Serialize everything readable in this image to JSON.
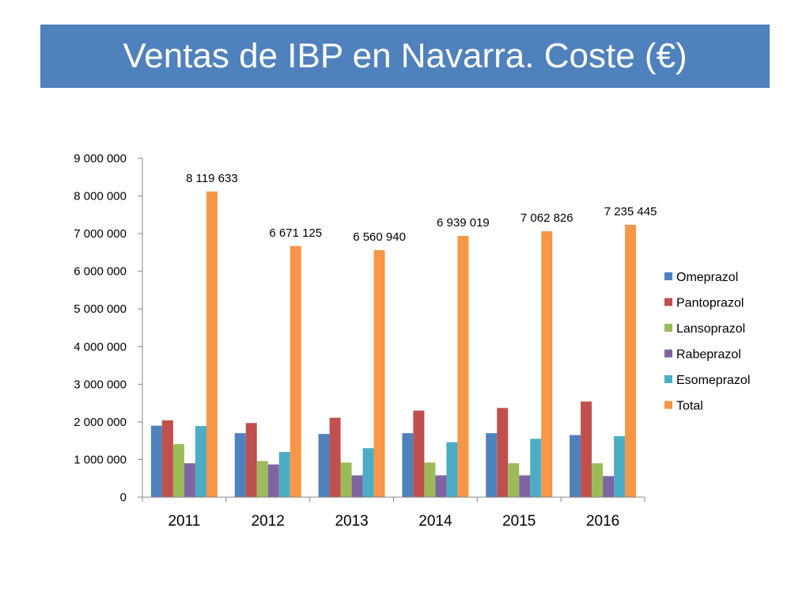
{
  "slide": {
    "title": "Ventas de IBP en Navarra. Coste (€)"
  },
  "chart_data": {
    "type": "bar",
    "categories": [
      "2011",
      "2012",
      "2013",
      "2014",
      "2015",
      "2016"
    ],
    "series": [
      {
        "name": "Omeprazol",
        "color": "#4f81bd",
        "values": [
          1900000,
          1700000,
          1680000,
          1700000,
          1700000,
          1650000
        ]
      },
      {
        "name": "Pantoprazol",
        "color": "#c0504d",
        "values": [
          2040000,
          1970000,
          2110000,
          2300000,
          2370000,
          2540000
        ]
      },
      {
        "name": "Lansoprazol",
        "color": "#9bbb59",
        "values": [
          1410000,
          960000,
          920000,
          920000,
          900000,
          900000
        ]
      },
      {
        "name": "Rabeprazol",
        "color": "#8064a2",
        "values": [
          900000,
          870000,
          580000,
          580000,
          580000,
          560000
        ]
      },
      {
        "name": "Esomeprazol",
        "color": "#4bacc6",
        "values": [
          1890000,
          1200000,
          1300000,
          1460000,
          1550000,
          1620000
        ]
      },
      {
        "name": "Total",
        "color": "#f79646",
        "values": [
          8119633,
          6671125,
          6560940,
          6939019,
          7062826,
          7235445
        ]
      }
    ],
    "data_labels": {
      "series": "Total",
      "labels": [
        "8 119 633",
        "6 671 125",
        "6 560 940",
        "6 939 019",
        "7 062 826",
        "7 235 445"
      ]
    },
    "y_ticks": [
      0,
      1000000,
      2000000,
      3000000,
      4000000,
      5000000,
      6000000,
      7000000,
      8000000,
      9000000
    ],
    "y_tick_labels": [
      "0",
      "1 000 000",
      "2 000 000",
      "3 000 000",
      "4 000 000",
      "5 000 000",
      "6 000 000",
      "7 000 000",
      "8 000 000",
      "9 000 000"
    ],
    "ylim": [
      0,
      9000000
    ],
    "grid": false,
    "legend_position": "right"
  }
}
